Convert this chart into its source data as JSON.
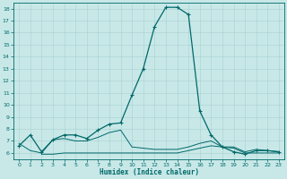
{
  "bg_color": "#c8e8e8",
  "grid_color": "#a8d0d0",
  "line_color": "#006868",
  "xlabel": "Humidex (Indice chaleur)",
  "xlim": [
    -0.5,
    23.5
  ],
  "ylim": [
    5.5,
    18.5
  ],
  "xticks": [
    0,
    1,
    2,
    3,
    4,
    5,
    6,
    7,
    8,
    9,
    10,
    11,
    12,
    13,
    14,
    15,
    16,
    17,
    18,
    19,
    20,
    21,
    22,
    23
  ],
  "yticks": [
    6,
    7,
    8,
    9,
    10,
    11,
    12,
    13,
    14,
    15,
    16,
    17,
    18
  ],
  "main_x": [
    0,
    1,
    2,
    3,
    4,
    5,
    6,
    7,
    8,
    9,
    10,
    11,
    12,
    13,
    14,
    15,
    16,
    17,
    18,
    19,
    20,
    21,
    22,
    23
  ],
  "main_y": [
    6.6,
    7.5,
    6.1,
    7.1,
    7.5,
    7.5,
    7.2,
    7.9,
    8.4,
    8.5,
    10.8,
    13.0,
    16.5,
    18.1,
    18.1,
    17.5,
    9.5,
    7.5,
    6.5,
    6.1,
    5.9,
    6.2,
    6.2,
    6.1
  ],
  "flat1_x": [
    0,
    1,
    2,
    3,
    4,
    5,
    6,
    7,
    8,
    9,
    10,
    11,
    12,
    13,
    14,
    15,
    16,
    17,
    18,
    19,
    20,
    21,
    22,
    23
  ],
  "flat1_y": [
    6.8,
    6.2,
    6.0,
    7.1,
    7.2,
    7.0,
    7.0,
    7.3,
    7.7,
    7.9,
    6.5,
    6.4,
    6.3,
    6.3,
    6.3,
    6.5,
    6.8,
    7.0,
    6.5,
    6.5,
    6.1,
    6.3,
    6.2,
    6.1
  ],
  "flat2_x": [
    2,
    3,
    4,
    5,
    6,
    7,
    8,
    9,
    10,
    11,
    12,
    13,
    14,
    15,
    16,
    17,
    18,
    19,
    20,
    21,
    22,
    23
  ],
  "flat2_y": [
    5.9,
    5.9,
    6.0,
    6.0,
    6.0,
    6.0,
    6.0,
    6.0,
    6.0,
    6.0,
    6.0,
    6.0,
    6.0,
    6.2,
    6.4,
    6.6,
    6.5,
    6.4,
    6.0,
    6.0,
    6.0,
    6.0
  ]
}
